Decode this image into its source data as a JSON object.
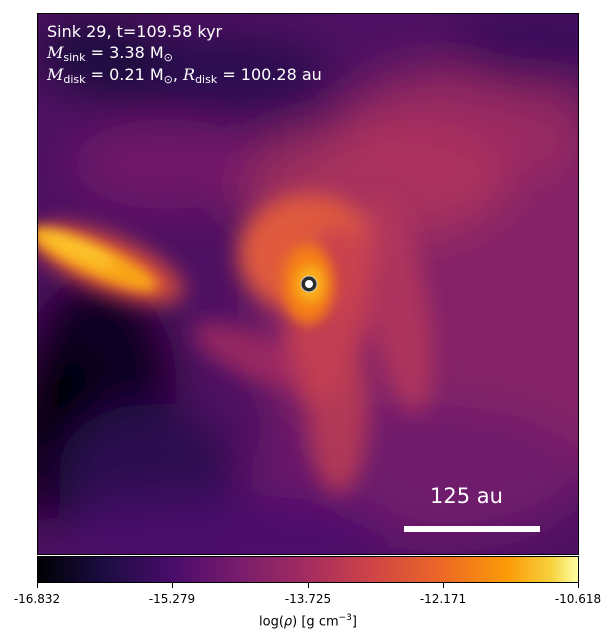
{
  "header": {
    "line1": "Sink 29, t=109.58 kyr",
    "msink_symbol": "M",
    "msink_sub": "sink",
    "msink_value": "= 3.38 M",
    "sun_sub": "⊙",
    "mdisk_symbol": "M",
    "mdisk_sub": "disk",
    "mdisk_value": "= 0.21 M",
    "rdisk_symbol": "R",
    "rdisk_sub": "disk",
    "rdisk_value": "= 100.28 au"
  },
  "scale_bar": {
    "label": "125 au"
  },
  "sink_marker": {
    "icon": "sink-particle-icon"
  },
  "colorbar": {
    "colormap": "inferno",
    "ticks": [
      "-16.832",
      "-15.279",
      "-13.725",
      "-12.171",
      "-10.618"
    ],
    "label_prefix": "log(",
    "label_rho": "ρ",
    "label_units": ") [g cm",
    "label_exp": "−3",
    "label_end": "]"
  }
}
